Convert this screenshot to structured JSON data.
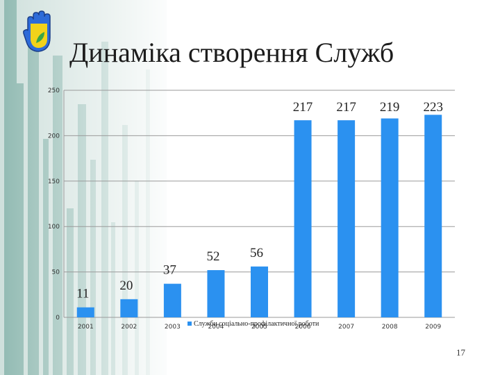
{
  "slide": {
    "title": "Динаміка створення Служб",
    "page_number": "17"
  },
  "colors": {
    "bar": "#2b91f0",
    "stripe_dark": "#5f9b90",
    "stripe_light": "#cfe0dc",
    "logo_blue": "#2d6bd8",
    "logo_yellow": "#f2d21a",
    "logo_green": "#3aa646"
  },
  "icons": {
    "logo": "hand-icon"
  },
  "chart_data": {
    "type": "bar",
    "categories": [
      "2001",
      "2002",
      "2003",
      "2004",
      "2005",
      "2006",
      "2007",
      "2008",
      "2009"
    ],
    "series": [
      {
        "name": "Служби соціально-профілактичної роботи",
        "values": [
          11,
          20,
          37,
          52,
          56,
          217,
          217,
          219,
          223
        ]
      }
    ],
    "data_labels": [
      "11",
      "20",
      "37",
      "52",
      "56",
      "217",
      "217",
      "219",
      "223"
    ],
    "y_ticks": [
      "0",
      "50",
      "100",
      "150",
      "200",
      "250"
    ],
    "ylim": [
      0,
      250
    ],
    "grid": true,
    "legend": "bottom (overlapping category labels)"
  }
}
